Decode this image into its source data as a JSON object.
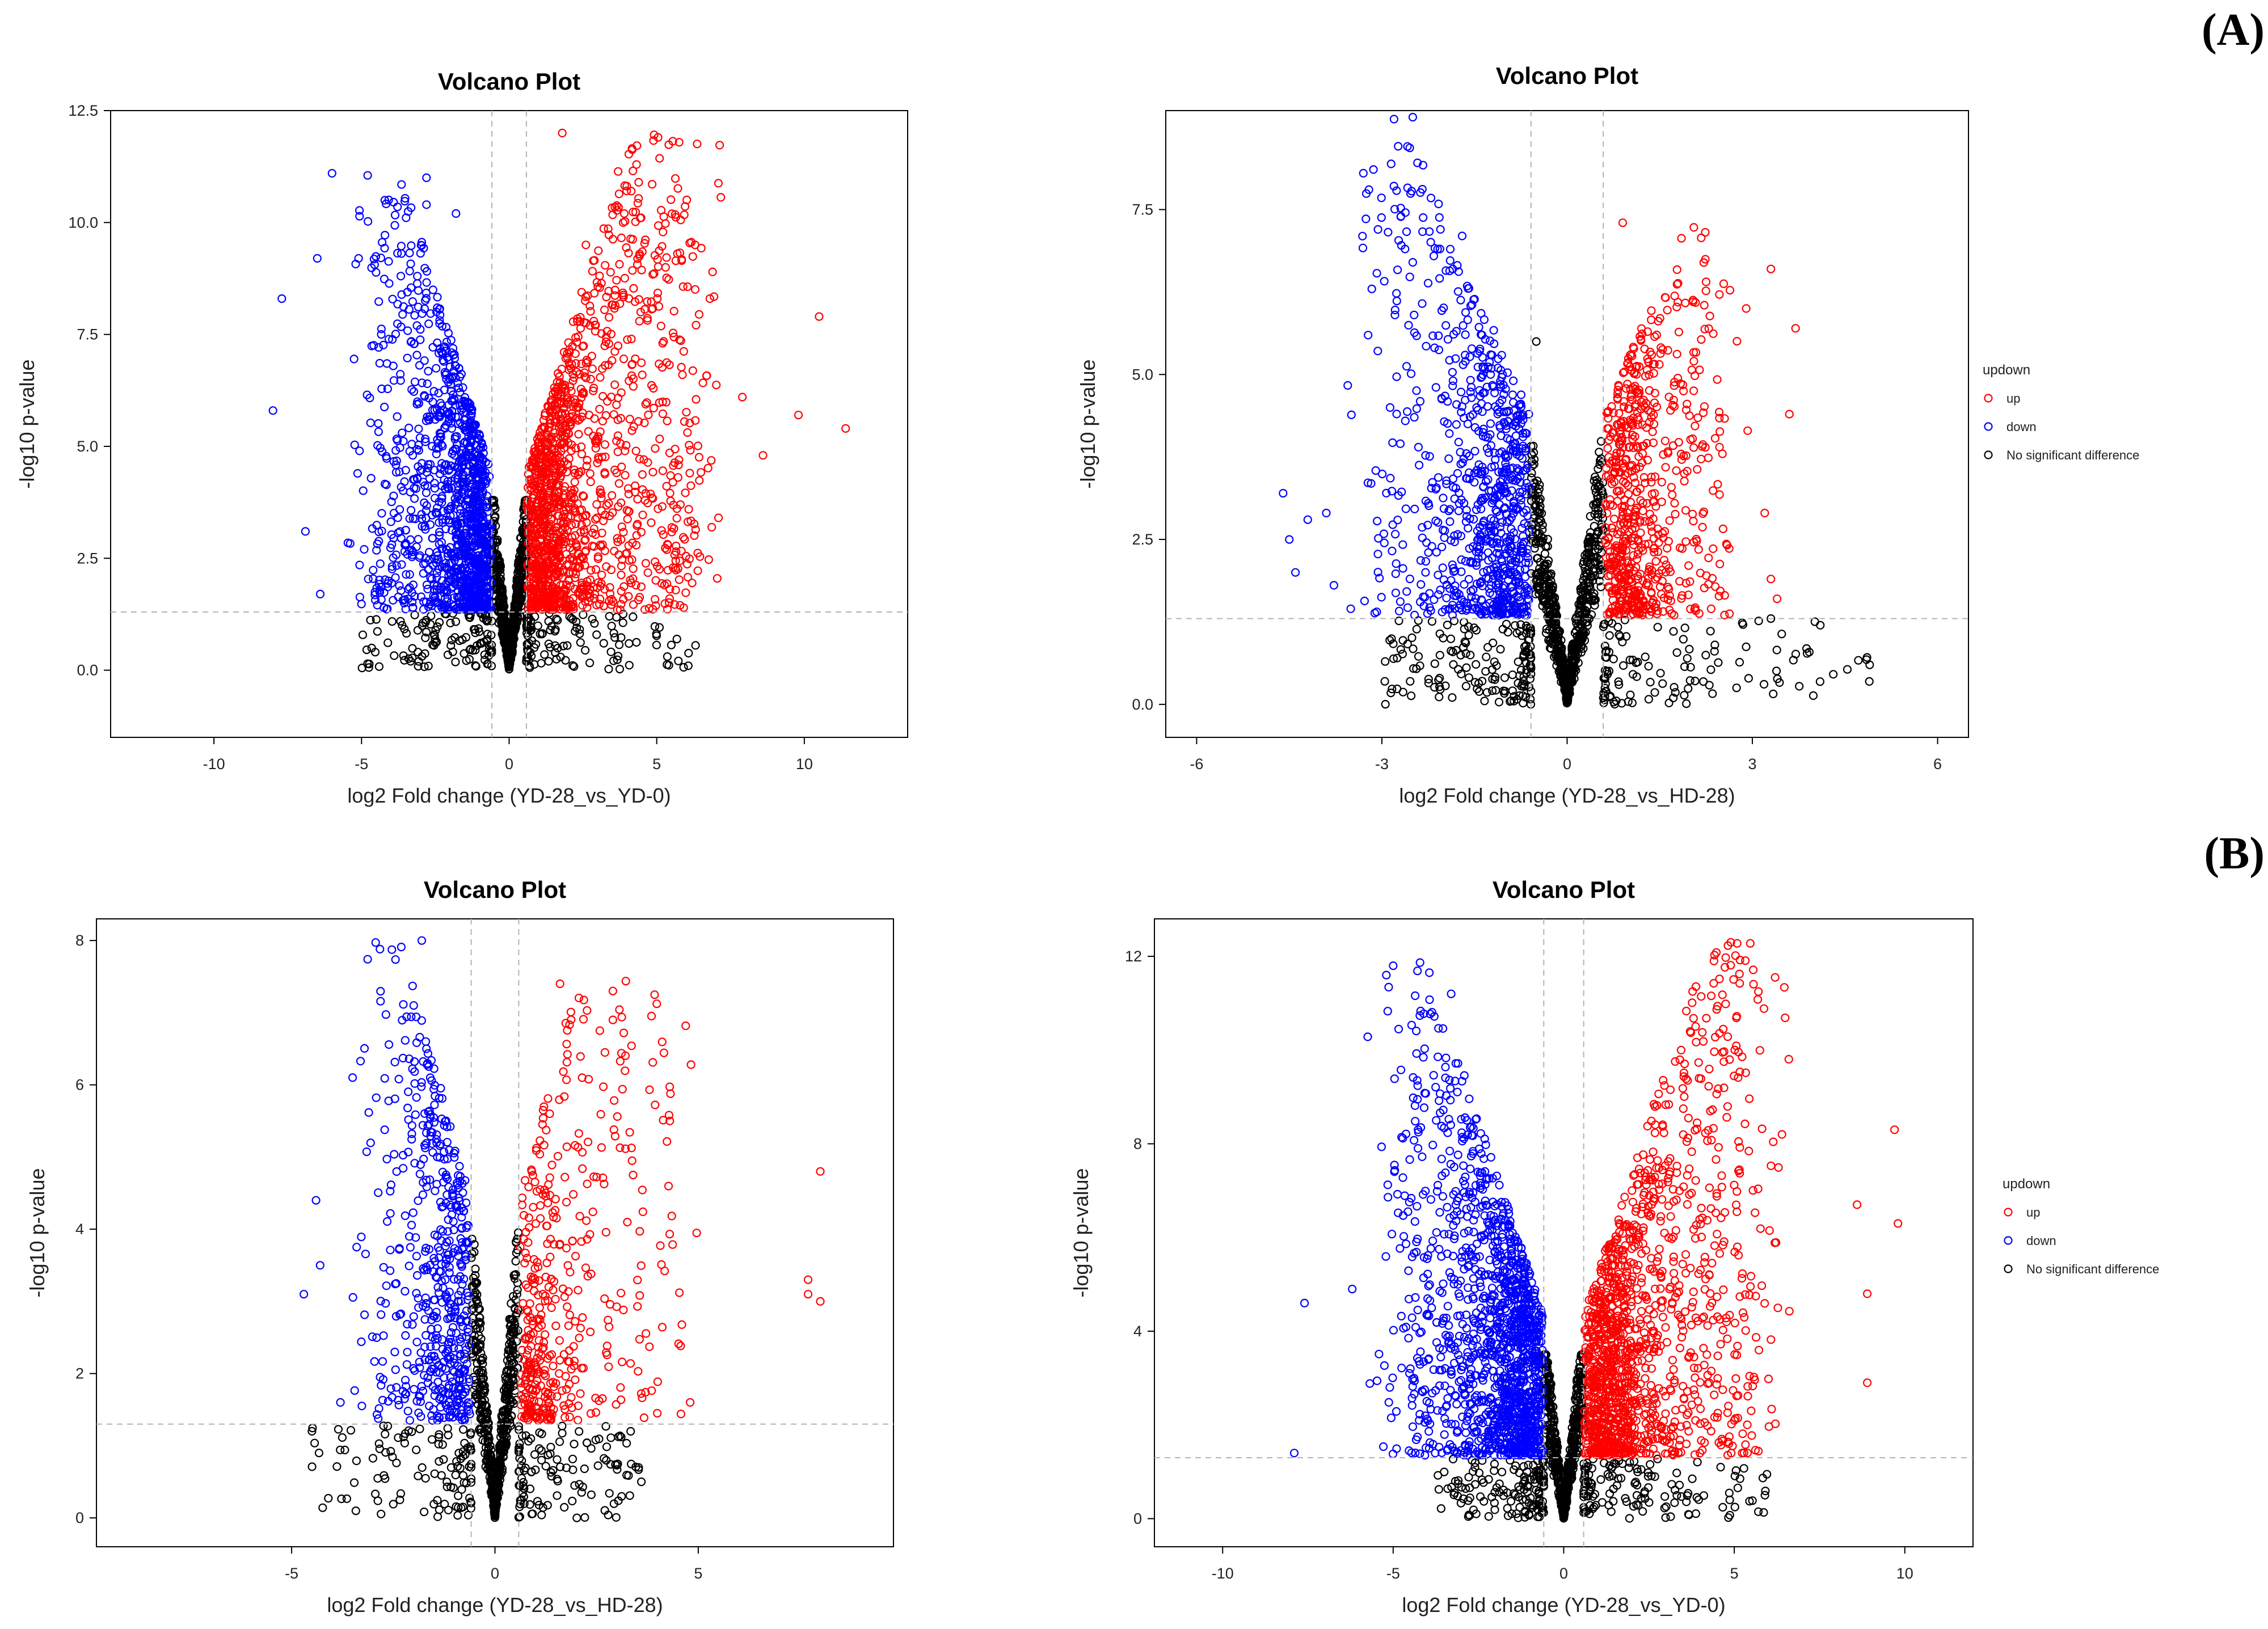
{
  "panel_labels": {
    "a": "(A)",
    "b": "(B)"
  },
  "colors": {
    "up": "#ff0000",
    "down": "#0000ff",
    "nsd": "#000000",
    "threshold": "#b3b3b3"
  },
  "chart_data": [
    {
      "type": "scatter",
      "title": "Volcano Plot",
      "xlabel": "log2 Fold change (YD-28_vs_YD-0)",
      "ylabel": "-log10 p-value",
      "xlim": [
        -13.5,
        13.5
      ],
      "ylim": [
        -1.5,
        12.5
      ],
      "xticks": [
        -10,
        -5,
        0,
        5,
        10
      ],
      "xtick_labels": [
        "-10",
        "-5",
        "0",
        "5",
        "10"
      ],
      "yticks": [
        0,
        2.5,
        5,
        7.5,
        10,
        12.5
      ],
      "ytick_labels": [
        "0.0",
        "2.5",
        "5.0",
        "7.5",
        "10.0",
        "12.5"
      ],
      "fc_threshold": 0.585,
      "p_threshold": 1.3,
      "legend": null,
      "series": [
        {
          "name": "up",
          "count": 1400,
          "xmin": 0.6,
          "xmax": 11.5,
          "ymax": 12,
          "spread": 1.6,
          "highlights": [
            [
              1.8,
              12.0
            ],
            [
              3.9,
              10.2
            ],
            [
              6.3,
              9.5
            ],
            [
              10.5,
              7.9
            ],
            [
              11.4,
              5.4
            ],
            [
              9.8,
              5.7
            ],
            [
              8.6,
              4.8
            ],
            [
              7.9,
              6.1
            ],
            [
              2.6,
              9.5
            ],
            [
              6.8,
              8.3
            ]
          ]
        },
        {
          "name": "down",
          "count": 1250,
          "xmin": -8.2,
          "xmax": -0.6,
          "ymax": 11.2,
          "spread": 1.4,
          "highlights": [
            [
              -6.0,
              11.1
            ],
            [
              -2.8,
              11.0
            ],
            [
              -2.8,
              10.4
            ],
            [
              -1.8,
              10.2
            ],
            [
              -6.5,
              9.2
            ],
            [
              -5.1,
              9.2
            ],
            [
              -7.7,
              8.3
            ],
            [
              -8.0,
              5.8
            ],
            [
              -6.9,
              3.1
            ],
            [
              -6.4,
              1.7
            ]
          ]
        },
        {
          "name": "No significant difference",
          "count": 900,
          "xmin": -5.2,
          "xmax": 6.4,
          "ymax": 3.8,
          "spread": 1.2,
          "highlights": []
        }
      ]
    },
    {
      "type": "scatter",
      "title": "Volcano Plot",
      "xlabel": "log2 Fold change (YD-28_vs_HD-28)",
      "ylabel": "-log10 p-value",
      "xlim": [
        -6.5,
        6.5
      ],
      "ylim": [
        -0.5,
        9.0
      ],
      "xticks": [
        -6,
        -3,
        0,
        3,
        6
      ],
      "xtick_labels": [
        "-6",
        "-3",
        "0",
        "3",
        "6"
      ],
      "yticks": [
        0,
        2.5,
        5,
        7.5
      ],
      "ytick_labels": [
        "0.0",
        "2.5",
        "5.0",
        "7.5"
      ],
      "fc_threshold": 0.585,
      "p_threshold": 1.3,
      "legend": {
        "title": "updown",
        "items": [
          "up",
          "down",
          "No significant difference"
        ]
      },
      "series": [
        {
          "name": "up",
          "count": 650,
          "xmin": 0.6,
          "xmax": 3.8,
          "ymax": 7.3,
          "spread": 0.8,
          "highlights": [
            [
              0.9,
              7.3
            ],
            [
              3.3,
              6.6
            ],
            [
              2.9,
              6.0
            ],
            [
              3.7,
              5.7
            ],
            [
              3.6,
              4.4
            ],
            [
              3.2,
              2.9
            ],
            [
              3.3,
              1.9
            ],
            [
              3.4,
              1.6
            ]
          ]
        },
        {
          "name": "down",
          "count": 800,
          "xmin": -4.8,
          "xmax": -0.6,
          "ymax": 8.9,
          "spread": 1.0,
          "highlights": [
            [
              -2.5,
              8.9
            ],
            [
              -1.7,
              7.1
            ],
            [
              -2.5,
              6.7
            ],
            [
              -4.6,
              3.2
            ],
            [
              -4.4,
              2.0
            ],
            [
              -3.9,
              2.9
            ],
            [
              -4.2,
              2.8
            ],
            [
              -4.5,
              2.5
            ]
          ]
        },
        {
          "name": "No significant difference",
          "count": 1000,
          "xmin": -3.0,
          "xmax": 4.9,
          "ymax": 5.6,
          "spread": 0.8,
          "highlights": [
            [
              4.9,
              0.6
            ],
            [
              4.1,
              1.2
            ],
            [
              3.3,
              1.3
            ],
            [
              -0.5,
              5.5
            ]
          ]
        }
      ]
    },
    {
      "type": "scatter",
      "title": "Volcano Plot",
      "xlabel": "log2 Fold change (YD-28_vs_HD-28)",
      "ylabel": "-log10 p-value",
      "xlim": [
        -9.8,
        9.8
      ],
      "ylim": [
        -0.4,
        8.3
      ],
      "xticks": [
        -5,
        0,
        5
      ],
      "xtick_labels": [
        "-5",
        "0",
        "5"
      ],
      "yticks": [
        0,
        2,
        4,
        6,
        8
      ],
      "ytick_labels": [
        "0",
        "2",
        "4",
        "6",
        "8"
      ],
      "fc_threshold": 0.585,
      "p_threshold": 1.3,
      "legend": null,
      "series": [
        {
          "name": "up",
          "count": 420,
          "xmin": 0.6,
          "xmax": 8.0,
          "ymax": 7.5,
          "spread": 0.9,
          "highlights": [
            [
              1.6,
              7.4
            ],
            [
              2.9,
              7.3
            ],
            [
              2.9,
              6.9
            ],
            [
              4.3,
              5.5
            ],
            [
              8.0,
              4.8
            ],
            [
              7.7,
              3.3
            ],
            [
              7.7,
              3.1
            ],
            [
              8.0,
              3.0
            ],
            [
              4.8,
              1.6
            ]
          ]
        },
        {
          "name": "down",
          "count": 520,
          "xmin": -4.8,
          "xmax": -0.6,
          "ymax": 8.0,
          "spread": 1.0,
          "highlights": [
            [
              -1.8,
              8.0
            ],
            [
              -1.7,
              6.6
            ],
            [
              -3.5,
              6.1
            ],
            [
              -4.7,
              3.1
            ],
            [
              -4.4,
              4.4
            ],
            [
              -4.3,
              3.5
            ],
            [
              -3.8,
              1.6
            ]
          ]
        },
        {
          "name": "No significant difference",
          "count": 800,
          "xmin": -4.6,
          "xmax": 3.6,
          "ymax": 4.7,
          "spread": 0.7,
          "highlights": [
            [
              -4.5,
              1.2
            ],
            [
              3.6,
              0.5
            ]
          ]
        }
      ]
    },
    {
      "type": "scatter",
      "title": "Volcano Plot",
      "xlabel": "log2 Fold change (YD-28_vs_YD-0)",
      "ylabel": "-log10 p-value",
      "xlim": [
        -12.0,
        12.0
      ],
      "ylim": [
        -0.6,
        12.8
      ],
      "xticks": [
        -10,
        -5,
        0,
        5,
        10
      ],
      "xtick_labels": [
        "-10",
        "-5",
        "0",
        "5",
        "10"
      ],
      "yticks": [
        0,
        4,
        8,
        12
      ],
      "ytick_labels": [
        "0",
        "4",
        "8",
        "12"
      ],
      "fc_threshold": 0.585,
      "p_threshold": 1.3,
      "legend": {
        "title": "updown",
        "items": [
          "up",
          "down",
          "No significant difference"
        ]
      },
      "series": [
        {
          "name": "up",
          "count": 1350,
          "xmin": 0.6,
          "xmax": 10.0,
          "ymax": 12.3,
          "spread": 1.5,
          "highlights": [
            [
              4.9,
              12.3
            ],
            [
              9.7,
              8.3
            ],
            [
              9.8,
              6.3
            ],
            [
              8.9,
              4.8
            ],
            [
              8.6,
              6.7
            ],
            [
              6.4,
              8.2
            ],
            [
              8.9,
              2.9
            ]
          ]
        },
        {
          "name": "down",
          "count": 1400,
          "xmin": -8.0,
          "xmax": -0.6,
          "ymax": 11.9,
          "spread": 1.6,
          "highlights": [
            [
              -5.0,
              11.8
            ],
            [
              -5.2,
              11.6
            ],
            [
              -3.3,
              11.2
            ],
            [
              -7.6,
              4.6
            ],
            [
              -6.2,
              4.9
            ],
            [
              -5.1,
              2.8
            ],
            [
              -7.9,
              1.4
            ]
          ]
        },
        {
          "name": "No significant difference",
          "count": 900,
          "xmin": -3.8,
          "xmax": 6.0,
          "ymax": 3.5,
          "spread": 0.9,
          "highlights": [
            [
              5.9,
              0.5
            ],
            [
              4.6,
              1.1
            ]
          ]
        }
      ]
    }
  ]
}
